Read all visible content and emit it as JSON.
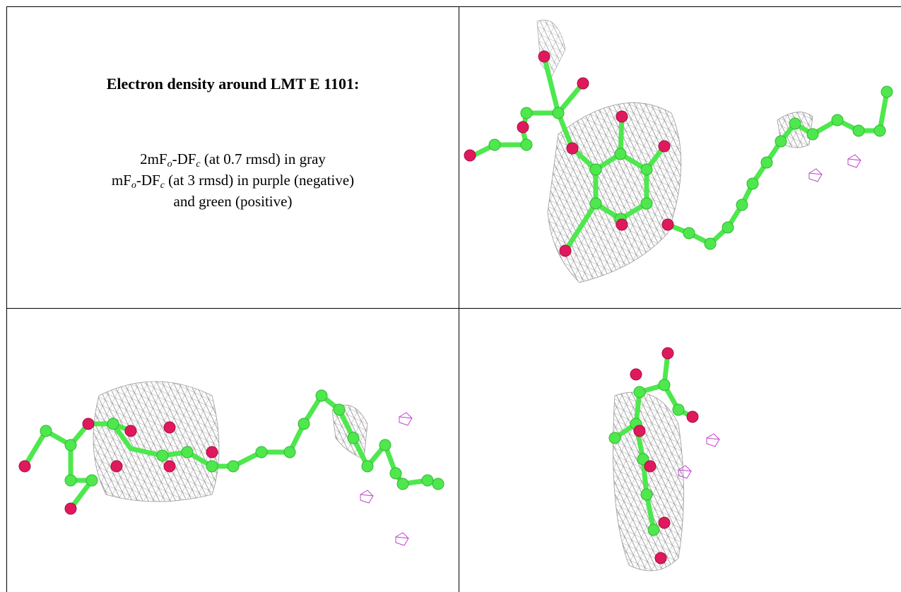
{
  "caption": {
    "title": "Electron density around LMT E 1101:",
    "lines": [
      [
        "2mF",
        "o",
        "-DF",
        "c",
        " (at 0.7 rmsd) in gray"
      ],
      [
        "mF",
        "o",
        "-DF",
        "c",
        " (at 3 rmsd) in purple (negative)"
      ],
      [
        "and green (positive)"
      ]
    ]
  }
}
